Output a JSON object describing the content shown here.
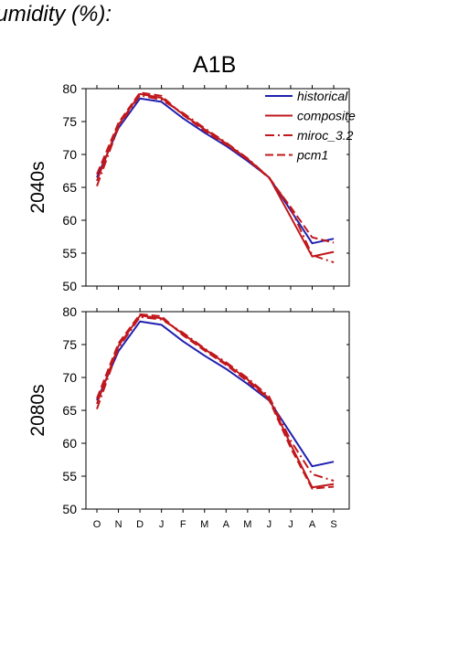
{
  "figure": {
    "title": "humidity (%):",
    "scenario": "A1B"
  },
  "chart_data": {
    "type": "line",
    "months": [
      "O",
      "N",
      "D",
      "J",
      "F",
      "M",
      "A",
      "M",
      "J",
      "J",
      "A",
      "S"
    ],
    "ylim": [
      50,
      80
    ],
    "yticks": [
      "50",
      "55",
      "60",
      "65",
      "70",
      "75",
      "80"
    ],
    "legend": [
      {
        "name": "historical",
        "color": "#2020b0",
        "dash": "solid"
      },
      {
        "name": "composite",
        "color": "#c0181c",
        "dash": "solid"
      },
      {
        "name": "miroc_3.2",
        "color": "#c0181c",
        "dash": "dashdot"
      },
      {
        "name": "pcm1",
        "color": "#c0181c",
        "dash": "dash"
      }
    ],
    "legend_position": "top-right",
    "panels": [
      {
        "label": "2040s",
        "series": [
          {
            "name": "historical",
            "values": [
              66.5,
              74.0,
              78.5,
              78.0,
              75.5,
              73.3,
              71.3,
              69.0,
              66.5,
              61.5,
              56.5,
              57.2
            ]
          },
          {
            "name": "composite",
            "values": [
              66.0,
              74.5,
              79.2,
              78.6,
              76.1,
              73.8,
              71.7,
              69.3,
              66.5,
              60.5,
              54.5,
              55.2
            ]
          },
          {
            "name": "miroc_3.2",
            "values": [
              65.2,
              74.2,
              79.0,
              78.3,
              76.3,
              74.0,
              71.8,
              69.4,
              66.5,
              61.8,
              54.7,
              53.6
            ]
          },
          {
            "name": "pcm1",
            "values": [
              67.0,
              74.8,
              79.4,
              78.9,
              76.0,
              73.6,
              71.5,
              69.2,
              66.4,
              62.0,
              57.4,
              56.6
            ]
          }
        ]
      },
      {
        "label": "2080s",
        "series": [
          {
            "name": "historical",
            "values": [
              66.5,
              74.0,
              78.5,
              78.0,
              75.5,
              73.3,
              71.3,
              69.0,
              66.5,
              61.5,
              56.5,
              57.2
            ]
          },
          {
            "name": "composite",
            "values": [
              66.0,
              74.8,
              79.4,
              79.0,
              76.6,
              74.3,
              72.1,
              69.7,
              66.8,
              59.8,
              53.3,
              53.8
            ]
          },
          {
            "name": "miroc_3.2",
            "values": [
              65.2,
              74.5,
              79.2,
              78.8,
              76.8,
              74.4,
              72.3,
              69.9,
              67.1,
              60.4,
              55.3,
              54.3
            ]
          },
          {
            "name": "pcm1",
            "values": [
              66.8,
              75.2,
              79.6,
              79.3,
              76.4,
              74.1,
              71.9,
              69.4,
              66.6,
              59.3,
              53.1,
              53.4
            ]
          }
        ]
      }
    ]
  }
}
